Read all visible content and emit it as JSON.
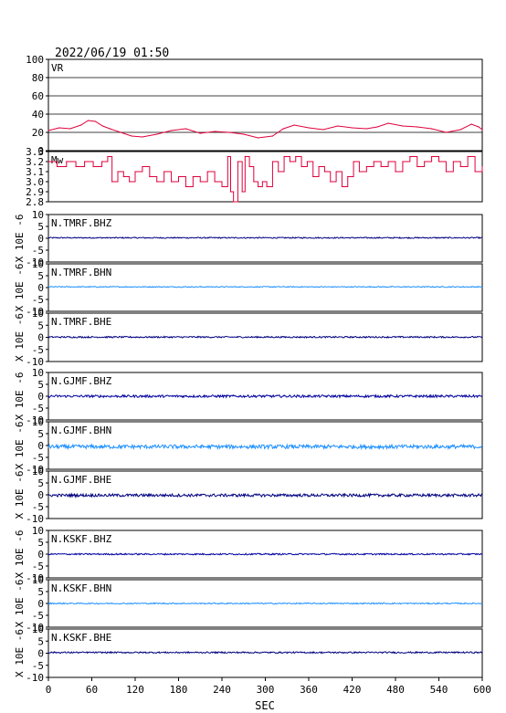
{
  "header": {
    "timestamp": "2022/06/19 01:50"
  },
  "chart_data": {
    "type": "line",
    "xlabel": "SEC",
    "xlim": [
      0,
      600
    ],
    "xticks": [
      0,
      60,
      120,
      180,
      240,
      300,
      360,
      420,
      480,
      540,
      600
    ],
    "panels": [
      {
        "label": "VR",
        "ylim": [
          0,
          100
        ],
        "yticks": [
          0,
          20,
          40,
          60,
          80,
          100
        ],
        "grid": true,
        "color": "#e0003c",
        "x": [
          0,
          15,
          30,
          45,
          55,
          65,
          75,
          85,
          100,
          115,
          130,
          150,
          170,
          190,
          210,
          230,
          250,
          270,
          290,
          310,
          325,
          340,
          360,
          380,
          400,
          420,
          440,
          455,
          470,
          490,
          510,
          530,
          550,
          570,
          585,
          595,
          600
        ],
        "values": [
          22,
          25,
          24,
          28,
          33,
          32,
          27,
          24,
          20,
          16,
          15,
          18,
          22,
          24,
          19,
          21,
          20,
          18,
          14,
          16,
          24,
          28,
          25,
          23,
          27,
          25,
          24,
          26,
          30,
          27,
          26,
          24,
          20,
          23,
          29,
          26,
          23
        ]
      },
      {
        "label": "Mw",
        "ylim": [
          2.8,
          3.3
        ],
        "yticks": [
          2.8,
          2.9,
          3.0,
          3.1,
          3.2,
          3.3
        ],
        "ytick_labels": [
          "2.8",
          "2.9",
          "3.0",
          "3.1",
          "3.2",
          "3.3"
        ],
        "grid": false,
        "step": true,
        "color": "#e0003c",
        "x": [
          0,
          12,
          25,
          38,
          50,
          62,
          74,
          82,
          88,
          96,
          104,
          112,
          120,
          130,
          140,
          150,
          160,
          170,
          180,
          190,
          200,
          210,
          220,
          230,
          240,
          248,
          252,
          256,
          262,
          268,
          272,
          278,
          284,
          290,
          296,
          302,
          310,
          318,
          326,
          334,
          342,
          350,
          358,
          366,
          374,
          382,
          390,
          398,
          406,
          414,
          422,
          430,
          440,
          450,
          460,
          470,
          480,
          490,
          500,
          510,
          520,
          530,
          540,
          550,
          560,
          570,
          580,
          590,
          600
        ],
        "values": [
          3.2,
          3.15,
          3.2,
          3.15,
          3.2,
          3.15,
          3.2,
          3.25,
          3.0,
          3.1,
          3.05,
          3.0,
          3.1,
          3.15,
          3.05,
          3.0,
          3.1,
          3.0,
          3.05,
          2.95,
          3.05,
          3.0,
          3.1,
          3.0,
          2.95,
          3.25,
          2.9,
          2.8,
          3.2,
          2.9,
          3.25,
          3.15,
          3.0,
          2.95,
          3.0,
          2.95,
          3.2,
          3.1,
          3.25,
          3.2,
          3.25,
          3.15,
          3.2,
          3.05,
          3.15,
          3.1,
          3.0,
          3.1,
          2.95,
          3.05,
          3.2,
          3.1,
          3.15,
          3.2,
          3.15,
          3.2,
          3.1,
          3.2,
          3.25,
          3.15,
          3.2,
          3.25,
          3.2,
          3.1,
          3.2,
          3.15,
          3.25,
          3.1,
          3.15
        ]
      },
      {
        "label": "N.TMRF.BHZ",
        "ylim": [
          -10,
          10
        ],
        "yticks": [
          -10,
          -5,
          0,
          5,
          10
        ],
        "ylabel": "X 10E -6",
        "color": "#000080",
        "baseline": 0.2,
        "amplitude": 0.25
      },
      {
        "label": "N.TMRF.BHN",
        "ylim": [
          -10,
          10
        ],
        "yticks": [
          -10,
          -5,
          0,
          5,
          10
        ],
        "ylabel": "X 10E -6",
        "color": "#1e90ff",
        "baseline": 0.3,
        "amplitude": 0.2
      },
      {
        "label": "N.TMRF.BHE",
        "ylim": [
          -10,
          10
        ],
        "yticks": [
          -10,
          -5,
          0,
          5,
          10
        ],
        "ylabel": "X 10E -6",
        "color": "#000080",
        "baseline": 0.1,
        "amplitude": 0.3
      },
      {
        "label": "N.GJMF.BHZ",
        "ylim": [
          -10,
          10
        ],
        "yticks": [
          -10,
          -5,
          0,
          5,
          10
        ],
        "ylabel": "X 10E -6",
        "color": "#0000a0",
        "baseline": 0.0,
        "amplitude": 0.5
      },
      {
        "label": "N.GJMF.BHN",
        "ylim": [
          -10,
          10
        ],
        "yticks": [
          -10,
          -5,
          0,
          5,
          10
        ],
        "ylabel": "X 10E -6",
        "color": "#1e90ff",
        "baseline": -0.5,
        "amplitude": 0.8
      },
      {
        "label": "N.GJMF.BHE",
        "ylim": [
          -10,
          10
        ],
        "yticks": [
          -10,
          -5,
          0,
          5,
          10
        ],
        "ylabel": "X 10E -6",
        "color": "#000080",
        "baseline": -0.2,
        "amplitude": 0.6
      },
      {
        "label": "N.KSKF.BHZ",
        "ylim": [
          -10,
          10
        ],
        "yticks": [
          -10,
          -5,
          0,
          5,
          10
        ],
        "ylabel": "X 10E -6",
        "color": "#0000a0",
        "baseline": 0.0,
        "amplitude": 0.3
      },
      {
        "label": "N.KSKF.BHN",
        "ylim": [
          -10,
          10
        ],
        "yticks": [
          -10,
          -5,
          0,
          5,
          10
        ],
        "ylabel": "X 10E -6",
        "color": "#1e90ff",
        "baseline": 0.0,
        "amplitude": 0.25
      },
      {
        "label": "N.KSKF.BHE",
        "ylim": [
          -10,
          10
        ],
        "yticks": [
          -10,
          -5,
          0,
          5,
          10
        ],
        "ylabel": "X 10E -6",
        "color": "#000080",
        "baseline": 0.3,
        "amplitude": 0.3
      }
    ]
  }
}
